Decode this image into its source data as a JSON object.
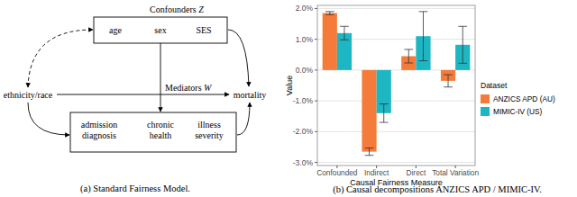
{
  "diagram": {
    "caption": "(a) Standard Fairness Model.",
    "confounders": {
      "label": "Confounders",
      "symbol": "Z",
      "items": [
        "age",
        "sex",
        "SES"
      ]
    },
    "mediators": {
      "label": "Mediators",
      "symbol": "W",
      "items": [
        [
          "admission",
          "diagnosis"
        ],
        [
          "chronic",
          "health"
        ],
        [
          "illness",
          "severity"
        ]
      ]
    },
    "attribute": "ethnicity/race",
    "outcome": "mortality"
  },
  "chart_data": {
    "type": "bar",
    "title": "(b) Causal decompositions ANZICS APD / MIMIC-IV.",
    "x_label": "Causal Fairness Measure",
    "y_label": "Value",
    "legend_title": "Dataset",
    "legend": "right",
    "grid": true,
    "categories": [
      "Confounded",
      "Indirect",
      "Direct",
      "Total Variation"
    ],
    "series": [
      {
        "name": "ANZICS APD (AU)",
        "color": "#f47b3a",
        "values": [
          1.85,
          -2.65,
          0.45,
          -0.35
        ],
        "error": [
          0.05,
          0.12,
          0.22,
          0.2
        ]
      },
      {
        "name": "MIMIC-IV (US)",
        "color": "#1db6c3",
        "values": [
          1.2,
          -1.4,
          1.1,
          0.82
        ],
        "error": [
          0.22,
          0.3,
          0.8,
          0.6
        ]
      }
    ],
    "ylim": [
      -3.1,
      2.1
    ],
    "yticks": [
      {
        "value": -3,
        "label": "-3.0%"
      },
      {
        "value": -2,
        "label": "-2.0%"
      },
      {
        "value": -1,
        "label": "-1.0%"
      },
      {
        "value": 0,
        "label": "0.0%"
      },
      {
        "value": 1,
        "label": "1.0%"
      },
      {
        "value": 2,
        "label": "2.0%"
      }
    ]
  }
}
